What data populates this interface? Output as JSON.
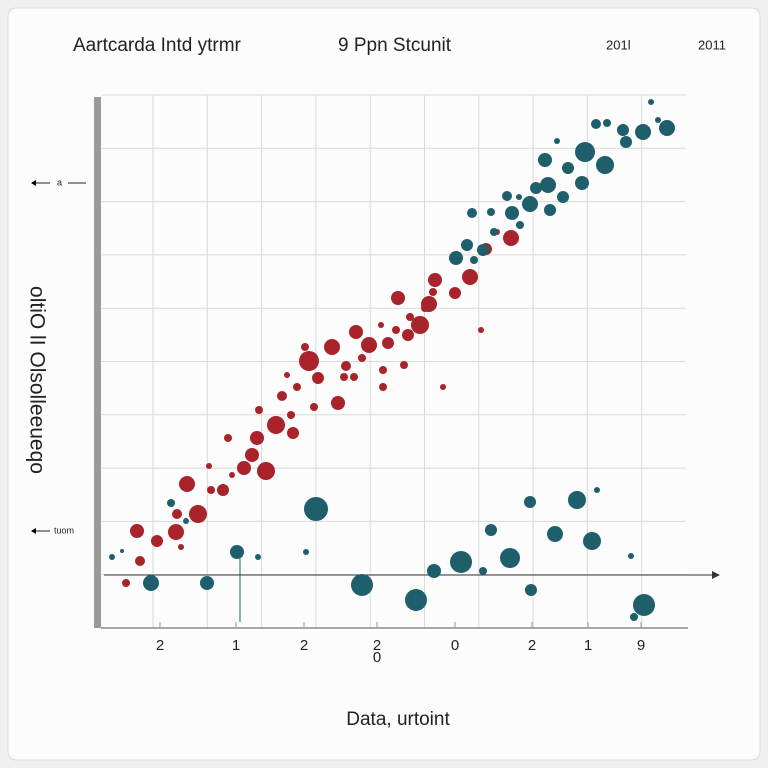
{
  "chart_data": {
    "type": "scatter",
    "title": "Aartcarda Intd ytrmr",
    "subtitle": "9 Ppn Stcunit",
    "corner_labels": [
      "201l",
      "2011"
    ],
    "xlabel": "Data, urtoint",
    "ylabel": "oltiO lI Olsolleeueqo",
    "annotations": [
      "a",
      "tuom",
      "0"
    ],
    "xlim": [
      0,
      590
    ],
    "ylim": [
      0,
      533
    ],
    "xticks": [
      {
        "value": 64,
        "label": "2"
      },
      {
        "value": 140,
        "label": "1"
      },
      {
        "value": 208,
        "label": "2"
      },
      {
        "value": 281,
        "label": "2"
      },
      {
        "value": 359,
        "label": "0"
      },
      {
        "value": 436,
        "label": "2"
      },
      {
        "value": 492,
        "label": "1"
      },
      {
        "value": 545,
        "label": "9"
      }
    ],
    "grid": true,
    "series": [
      {
        "color": "#a8232a",
        "x": [
          41,
          44,
          30,
          61,
          80,
          85,
          81,
          102,
          91,
          115,
          127,
          113,
          132,
          148,
          136,
          161,
          170,
          156,
          163,
          180,
          197,
          195,
          186,
          191,
          213,
          201,
          218,
          209,
          222,
          236,
          242,
          250,
          248,
          260,
          266,
          258,
          273,
          287,
          287,
          285,
          292,
          302,
          300,
          312,
          308,
          314,
          324,
          329,
          333,
          337,
          339,
          347,
          359,
          374,
          385,
          401,
          390,
          415
        ],
        "values": [
          97,
          67,
          45,
          87,
          96,
          81,
          114,
          114,
          144,
          138,
          138,
          162,
          190,
          160,
          153,
          190,
          157,
          173,
          218,
          203,
          195,
          213,
          232,
          253,
          267,
          241,
          221,
          281,
          250,
          281,
          225,
          262,
          251,
          296,
          270,
          251,
          283,
          258,
          241,
          303,
          285,
          330,
          298,
          293,
          263,
          311,
          303,
          320,
          324,
          336,
          348,
          241,
          335,
          351,
          298,
          396,
          379,
          390
        ],
        "sizes": [
          7,
          5,
          4,
          6,
          8,
          3,
          5,
          9,
          8,
          4,
          6,
          3,
          4,
          7,
          3,
          7,
          9,
          7,
          4,
          9,
          6,
          4,
          5,
          3,
          10,
          4,
          4,
          4,
          6,
          8,
          7,
          5,
          4,
          7,
          4,
          4,
          8,
          4,
          4,
          3,
          6,
          7,
          4,
          6,
          4,
          4,
          9,
          4,
          8,
          4,
          7,
          3,
          6,
          8,
          3,
          3,
          6,
          8
        ]
      },
      {
        "color": "#1f5f6b",
        "x": [
          555,
          562,
          511,
          527,
          547,
          571,
          500,
          530,
          489,
          461,
          449,
          472,
          509,
          486,
          452,
          440,
          467,
          423,
          411,
          434,
          416,
          454,
          376,
          395,
          424,
          398,
          371,
          387,
          360,
          378,
          220,
          75,
          90,
          141,
          16,
          26,
          162,
          210,
          55,
          111,
          266,
          320,
          338,
          365,
          387,
          414,
          395,
          434,
          459,
          481,
          496,
          501,
          435,
          548,
          535,
          538
        ],
        "values": [
          526,
          508,
          505,
          498,
          496,
          500,
          504,
          486,
          476,
          487,
          468,
          460,
          463,
          445,
          443,
          440,
          431,
          431,
          432,
          424,
          415,
          418,
          415,
          416,
          403,
          396,
          383,
          378,
          370,
          368,
          119,
          125,
          107,
          76,
          71,
          77,
          71,
          76,
          45,
          45,
          43,
          28,
          57,
          66,
          57,
          70,
          98,
          126,
          94,
          128,
          87,
          138,
          38,
          23,
          72,
          11
        ],
        "sizes": [
          3,
          3,
          4,
          6,
          8,
          8,
          5,
          6,
          10,
          3,
          7,
          6,
          9,
          7,
          8,
          6,
          6,
          3,
          5,
          8,
          7,
          6,
          5,
          4,
          4,
          4,
          6,
          6,
          7,
          4,
          12,
          4,
          3,
          7,
          3,
          2,
          3,
          3,
          8,
          7,
          11,
          11,
          7,
          11,
          4,
          10,
          6,
          6,
          8,
          9,
          9,
          3,
          6,
          11,
          3,
          4
        ]
      }
    ]
  }
}
